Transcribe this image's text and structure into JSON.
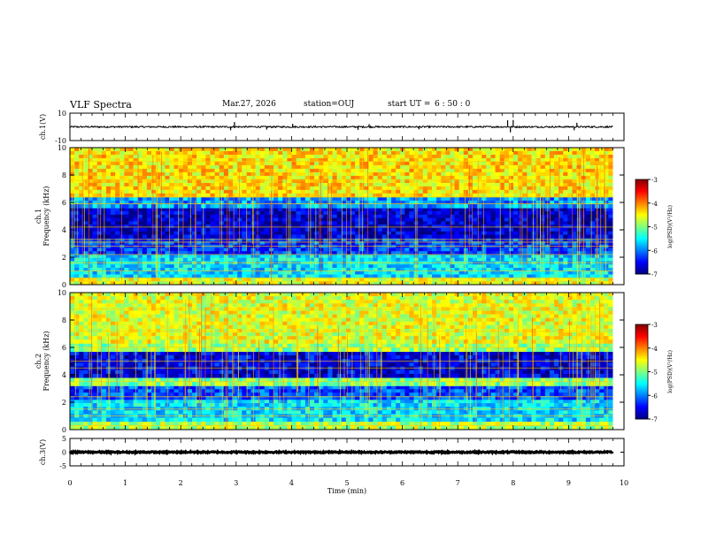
{
  "header": {
    "title": "VLF Spectra",
    "date": "Mar.27, 2026",
    "station": "station=OUJ",
    "start_ut_label": "start  UT =",
    "start_ut_value": "6  : 50 : 0"
  },
  "chart_data": [
    {
      "id": "ch1_waveform",
      "type": "line",
      "ylabel": "ch.1(V)",
      "ylim": [
        -10,
        10
      ],
      "ytick_labels": [
        "10",
        "-10"
      ],
      "xlim": [
        0,
        10
      ],
      "data_end_min": 9.8,
      "baseline": 0,
      "noise_amplitude": 0.6,
      "spikes": [
        {
          "t": 2.9,
          "v": -2.5
        },
        {
          "t": 2.97,
          "v": 3.5
        },
        {
          "t": 3.55,
          "v": -2.0
        },
        {
          "t": 4.02,
          "v": 2.2
        },
        {
          "t": 5.2,
          "v": -2.2
        },
        {
          "t": 5.4,
          "v": 2.0
        },
        {
          "t": 6.3,
          "v": -1.8
        },
        {
          "t": 7.9,
          "v": 4.8
        },
        {
          "t": 7.95,
          "v": -4.0
        },
        {
          "t": 8.0,
          "v": 5.0
        },
        {
          "t": 9.1,
          "v": -2.5
        },
        {
          "t": 9.15,
          "v": 3.0
        }
      ]
    },
    {
      "id": "ch1_spectrogram",
      "type": "heatmap",
      "ylabel_line1": "ch.1",
      "ylabel_line2": "Frequency (kHz)",
      "ylim": [
        0,
        10
      ],
      "ytick_labels": [
        "0",
        "2",
        "4",
        "6",
        "8",
        "10"
      ],
      "xlim": [
        0,
        10
      ],
      "data_end_min": 9.8,
      "colorbar_label": "log(PSD)(V²/Hz)",
      "colorbar_range": [
        -7,
        -3
      ],
      "colorbar_tick_labels": [
        "-3",
        "-4",
        "-5",
        "-6",
        "-7"
      ],
      "bands": [
        {
          "f0": 0,
          "f1": 0.5,
          "v": -4.6
        },
        {
          "f0": 0.5,
          "f1": 2.2,
          "v": -5.6
        },
        {
          "f0": 2.2,
          "f1": 3.4,
          "v": -6.3
        },
        {
          "f0": 3.4,
          "f1": 5.6,
          "v": -6.7
        },
        {
          "f0": 5.6,
          "f1": 6.4,
          "v": -5.9
        },
        {
          "f0": 6.4,
          "f1": 10,
          "v": -4.4
        }
      ],
      "lines_khz": [
        0.25,
        0.5,
        1.0,
        1.6,
        2.2,
        2.8,
        3.1,
        3.3,
        4.2,
        5.9,
        6.4,
        7.6,
        9.0
      ]
    },
    {
      "id": "ch2_spectrogram",
      "type": "heatmap",
      "ylabel_line1": "ch.2",
      "ylabel_line2": "Frequency (kHz)",
      "ylim": [
        0,
        10
      ],
      "ytick_labels": [
        "0",
        "2",
        "4",
        "6",
        "8",
        "10"
      ],
      "xlim": [
        0,
        10
      ],
      "data_end_min": 9.8,
      "colorbar_label": "log(PSD)(V²/Hz)",
      "colorbar_range": [
        -7,
        -3
      ],
      "colorbar_tick_labels": [
        "-3",
        "-4",
        "-5",
        "-6",
        "-7"
      ],
      "bands": [
        {
          "f0": 0,
          "f1": 0.6,
          "v": -4.8
        },
        {
          "f0": 0.6,
          "f1": 2.2,
          "v": -5.6
        },
        {
          "f0": 2.2,
          "f1": 3.2,
          "v": -6.2
        },
        {
          "f0": 3.2,
          "f1": 3.8,
          "v": -5.0
        },
        {
          "f0": 3.8,
          "f1": 5.7,
          "v": -6.6
        },
        {
          "f0": 5.7,
          "f1": 6.3,
          "v": -4.9
        },
        {
          "f0": 6.3,
          "f1": 10,
          "v": -4.6
        }
      ],
      "lines_khz": [
        0.3,
        1.0,
        1.5,
        2.4,
        3.5,
        4.5,
        5.0,
        6.0,
        7.2,
        8.8
      ]
    },
    {
      "id": "ch3_waveform",
      "type": "line",
      "ylabel": "ch.3(V)",
      "ylim": [
        -5,
        5
      ],
      "ytick_labels": [
        "5",
        "0",
        "-5"
      ],
      "xlim": [
        0,
        10
      ],
      "data_end_min": 9.8,
      "baseline": 0,
      "noise_amplitude": 0.25,
      "spikes": []
    }
  ],
  "x_axis": {
    "label": "Time (min)",
    "tick_labels": [
      "0",
      "1",
      "2",
      "3",
      "4",
      "5",
      "6",
      "7",
      "8",
      "9",
      "10"
    ]
  }
}
